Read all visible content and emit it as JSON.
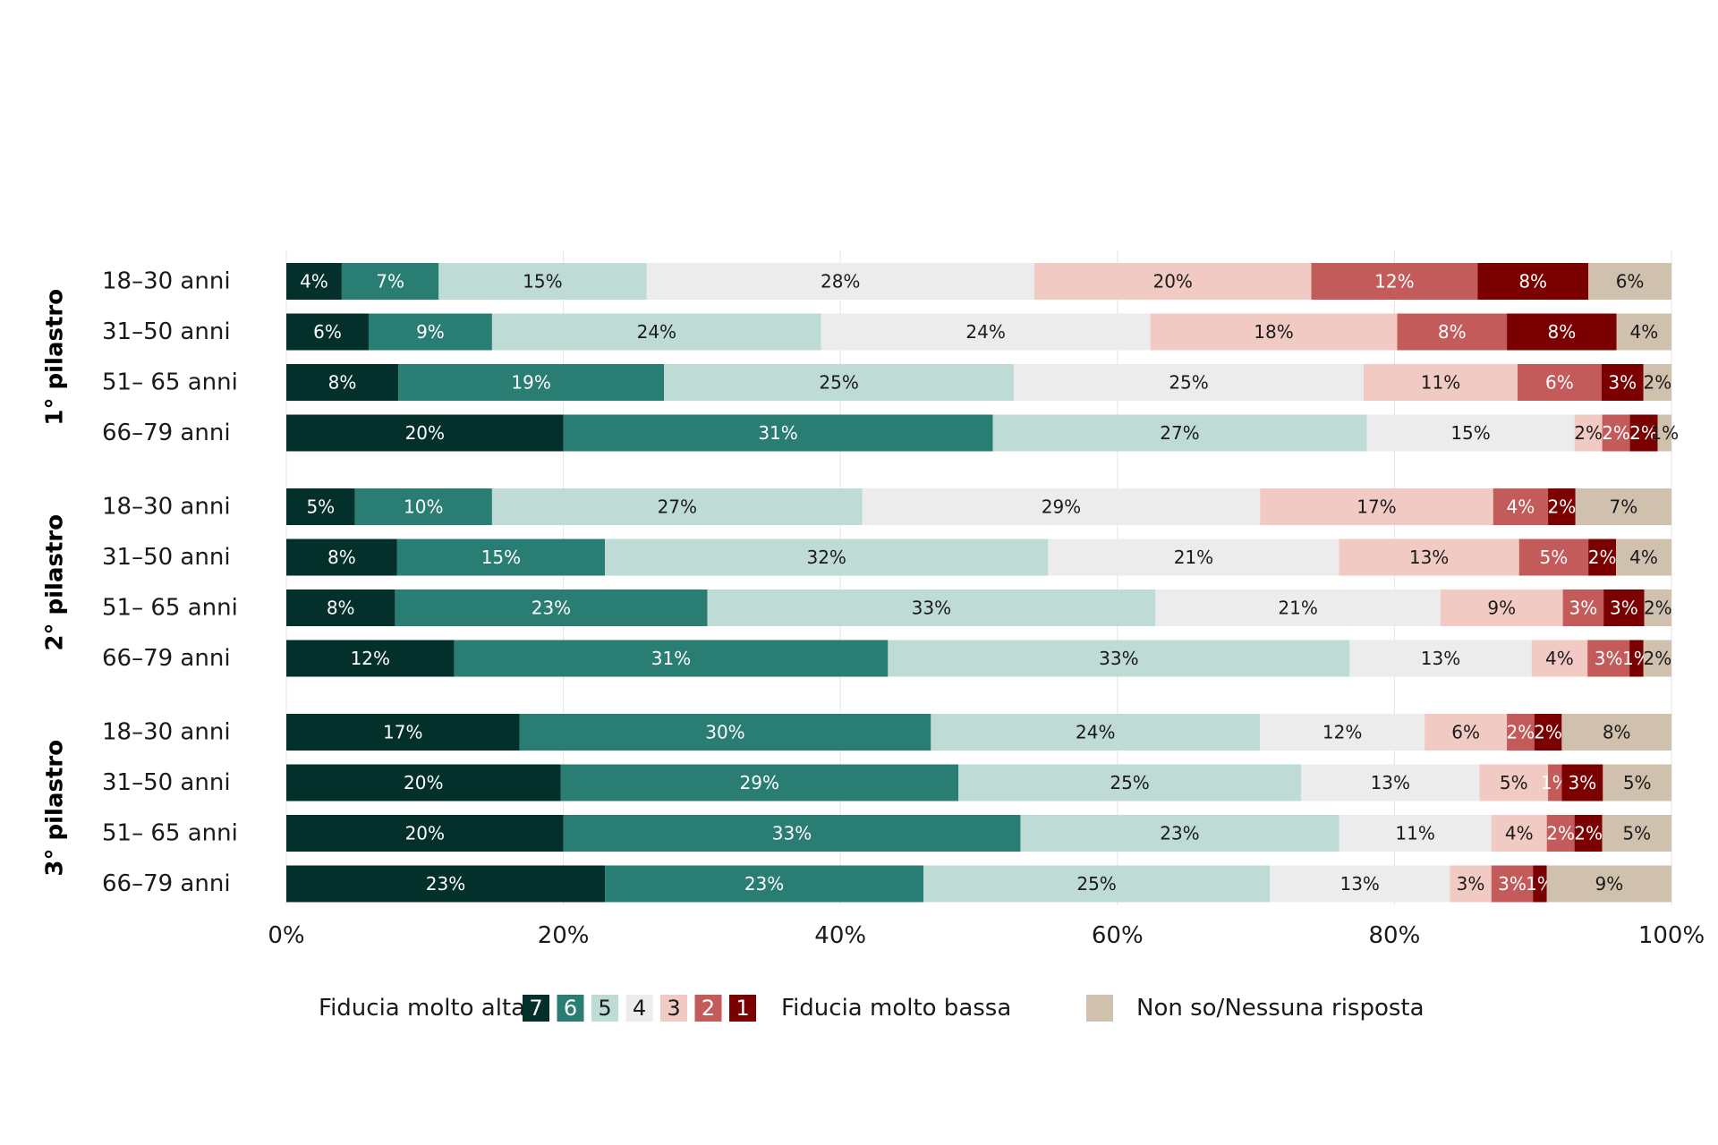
{
  "chart_data": {
    "type": "bar",
    "orientation": "horizontal",
    "stacked": true,
    "xlim": [
      0,
      100
    ],
    "x_ticks": [
      "0%",
      "20%",
      "40%",
      "60%",
      "80%",
      "100%"
    ],
    "grid": true,
    "legend_position": "bottom",
    "groups": [
      {
        "label": "1° pilastro",
        "rows": [
          {
            "label": "18–30 anni",
            "values": [
              4,
              7,
              15,
              28,
              20,
              12,
              8,
              6
            ]
          },
          {
            "label": "31–50 anni",
            "values": [
              6,
              9,
              24,
              24,
              18,
              8,
              8,
              4
            ]
          },
          {
            "label": "51– 65 anni",
            "values": [
              8,
              19,
              25,
              25,
              11,
              6,
              3,
              2
            ]
          },
          {
            "label": "66–79 anni",
            "values": [
              20,
              31,
              27,
              15,
              2,
              2,
              2,
              1
            ]
          }
        ]
      },
      {
        "label": "2° pilastro",
        "rows": [
          {
            "label": "18–30 anni",
            "values": [
              5,
              10,
              27,
              29,
              17,
              4,
              2,
              7
            ]
          },
          {
            "label": "31–50 anni",
            "values": [
              8,
              15,
              32,
              21,
              13,
              5,
              2,
              4
            ]
          },
          {
            "label": "51– 65 anni",
            "values": [
              8,
              23,
              33,
              21,
              9,
              3,
              3,
              2
            ]
          },
          {
            "label": "66–79 anni",
            "values": [
              12,
              31,
              33,
              13,
              4,
              3,
              1,
              2
            ]
          }
        ]
      },
      {
        "label": "3° pilastro",
        "rows": [
          {
            "label": "18–30 anni",
            "values": [
              17,
              30,
              24,
              12,
              6,
              2,
              2,
              8
            ]
          },
          {
            "label": "31–50 anni",
            "values": [
              20,
              29,
              25,
              13,
              5,
              1,
              3,
              5
            ]
          },
          {
            "label": "51– 65 anni",
            "values": [
              20,
              33,
              23,
              11,
              4,
              2,
              2,
              5
            ]
          },
          {
            "label": "66–79 anni",
            "values": [
              23,
              23,
              25,
              13,
              3,
              3,
              1,
              9
            ]
          }
        ]
      }
    ],
    "categories": [
      {
        "key": "7",
        "color": "#03302b",
        "text_color": "#ffffff"
      },
      {
        "key": "6",
        "color": "#2a7d73",
        "text_color": "#ffffff"
      },
      {
        "key": "5",
        "color": "#bfdbd5",
        "text_color": "#1a1a1a"
      },
      {
        "key": "4",
        "color": "#ececec",
        "text_color": "#1a1a1a"
      },
      {
        "key": "3",
        "color": "#f1cbc3",
        "text_color": "#1a1a1a"
      },
      {
        "key": "2",
        "color": "#c45b5b",
        "text_color": "#ffffff"
      },
      {
        "key": "1",
        "color": "#7b0000",
        "text_color": "#ffffff"
      },
      {
        "key": "Non so/Nessuna risposta",
        "color": "#d0c0ae",
        "text_color": "#1a1a1a"
      }
    ],
    "legend": {
      "left_text": "Fiducia molto alta",
      "scale_keys": [
        "7",
        "6",
        "5",
        "4",
        "3",
        "2",
        "1"
      ],
      "right_text": "Fiducia molto bassa",
      "no_answer_text": "Non so/Nessuna risposta"
    }
  }
}
